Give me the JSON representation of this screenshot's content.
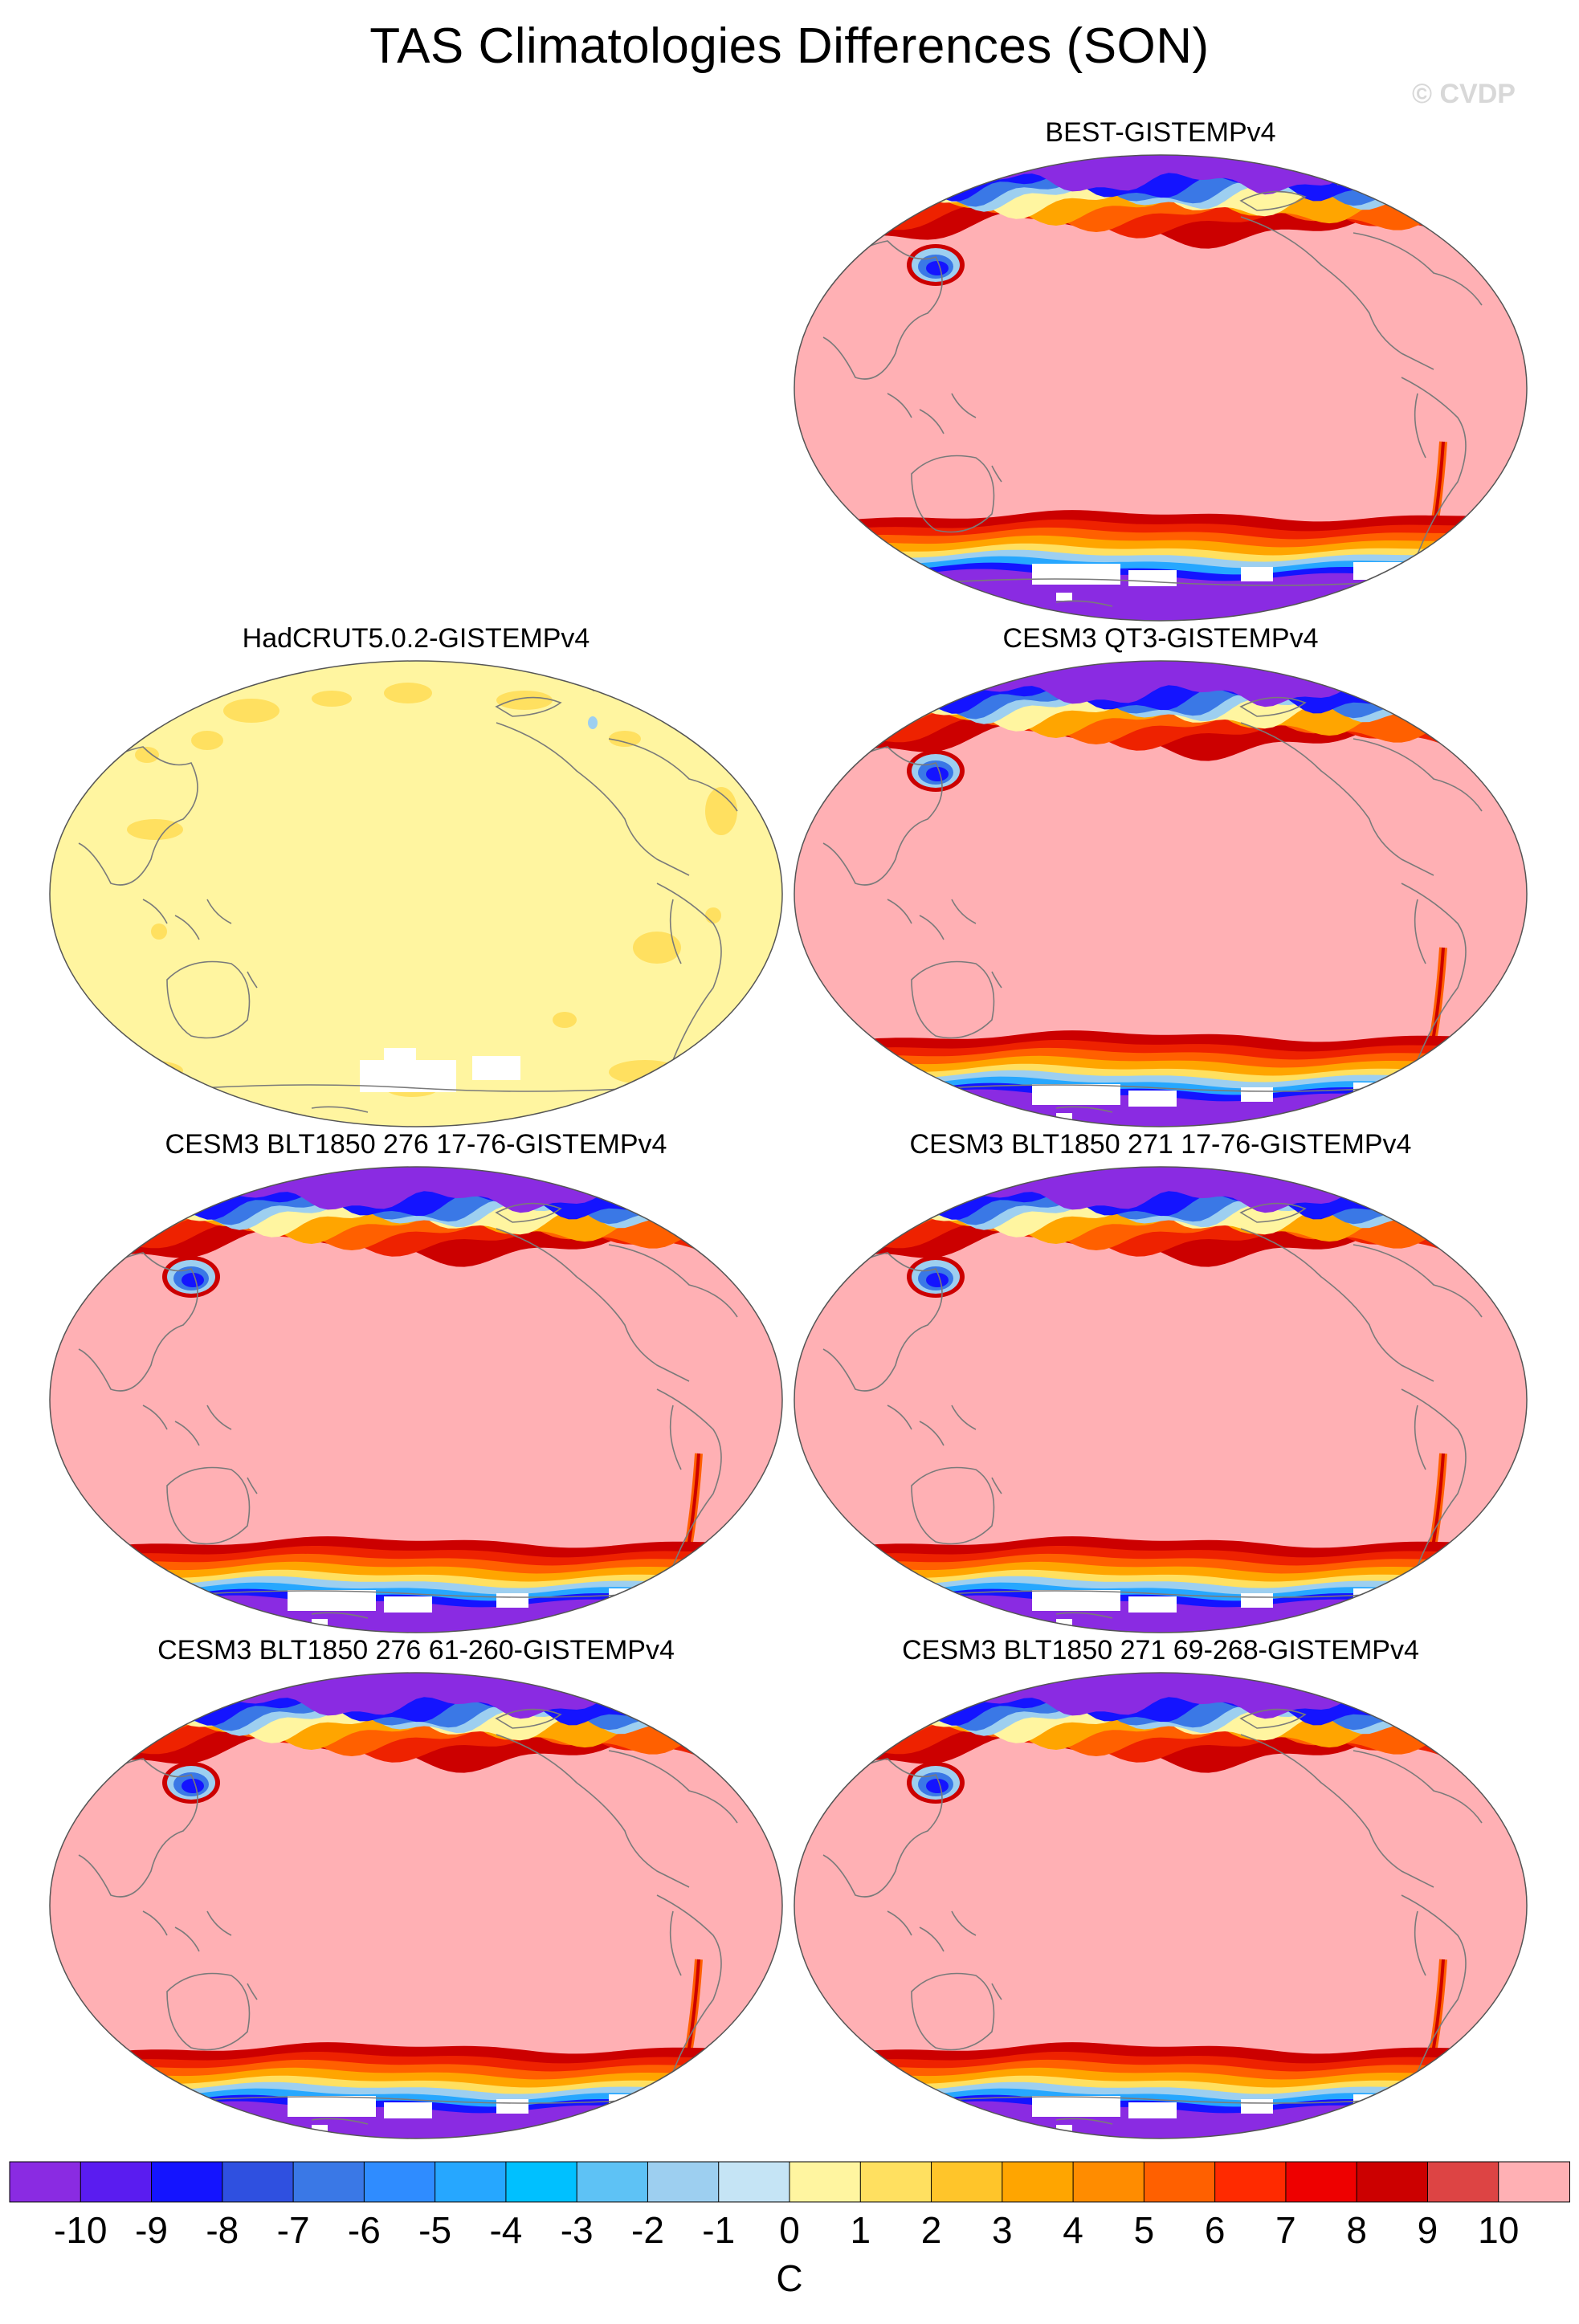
{
  "figure": {
    "title": "TAS Climatologies Differences (SON)",
    "watermark": "© CVDP",
    "units": "C"
  },
  "panels": [
    {
      "title": "BEST-GISTEMPv4",
      "pattern": "model",
      "wide_band": false
    },
    {
      "title": "HadCRUT5.0.2-GISTEMPv4",
      "pattern": "yellow"
    },
    {
      "title": "CESM3 QT3-GISTEMPv4",
      "pattern": "model",
      "wide_band": true
    },
    {
      "title": "CESM3 BLT1850 276 17-76-GISTEMPv4",
      "pattern": "model",
      "wide_band": true
    },
    {
      "title": "CESM3 BLT1850 271 17-76-GISTEMPv4",
      "pattern": "model",
      "wide_band": true
    },
    {
      "title": "CESM3 BLT1850 276 61-260-GISTEMPv4",
      "pattern": "model",
      "wide_band": true
    },
    {
      "title": "CESM3 BLT1850 271 69-268-GISTEMPv4",
      "pattern": "model",
      "wide_band": true
    }
  ],
  "colorbar": {
    "labels": [
      "-10",
      "-9",
      "-8",
      "-7",
      "-6",
      "-5",
      "-4",
      "-3",
      "-2",
      "-1",
      "0",
      "1",
      "2",
      "3",
      "4",
      "5",
      "6",
      "7",
      "8",
      "9",
      "10"
    ],
    "colors": [
      "#8a2be2",
      "#5a1cf0",
      "#1414ff",
      "#2f50e0",
      "#3a78e6",
      "#2f8cff",
      "#26a7ff",
      "#00c0ff",
      "#5ec2f5",
      "#9dcff0",
      "#c5e4f5",
      "#fff5a0",
      "#ffe060",
      "#ffc52a",
      "#ffa500",
      "#ff8c00",
      "#ff6000",
      "#ff2a00",
      "#ee0000",
      "#cc0000",
      "#dd4444",
      "#ffb0b4"
    ]
  }
}
